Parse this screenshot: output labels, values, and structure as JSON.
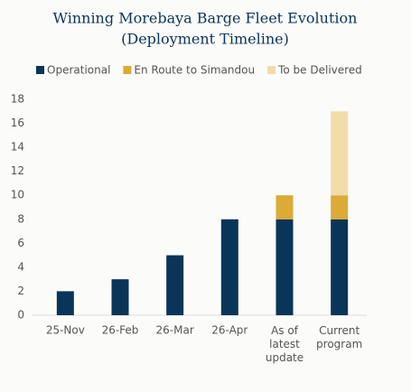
{
  "chart_data": {
    "type": "stacked-bar",
    "title": "Winning Morebaya Barge Fleet Evolution",
    "subtitle": "(Deployment Timeline)",
    "categories": [
      "25-Nov",
      "26-Feb",
      "26-Mar",
      "26-Apr",
      "As of latest update",
      "Current program"
    ],
    "series": [
      {
        "name": "Operational",
        "color": "#0b3558",
        "values": [
          2,
          3,
          5,
          8,
          8,
          8
        ]
      },
      {
        "name": "En Route to Simandou",
        "color": "#dcaa37",
        "values": [
          0,
          0,
          0,
          0,
          2,
          2
        ]
      },
      {
        "name": "To be Delivered",
        "color": "#f1dcaa",
        "values": [
          0,
          0,
          0,
          0,
          0,
          7
        ]
      }
    ],
    "ylim": [
      0,
      18
    ],
    "yticks": [
      0,
      2,
      4,
      6,
      8,
      10,
      12,
      14,
      16,
      18
    ],
    "grid": false,
    "legend": "top"
  }
}
